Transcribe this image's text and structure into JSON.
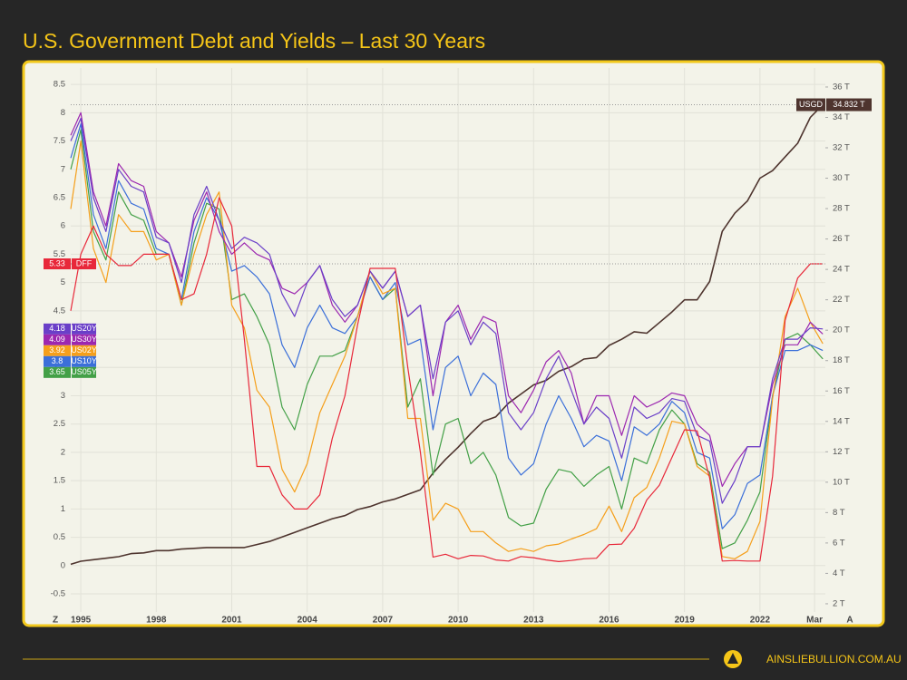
{
  "chart_data": {
    "type": "line",
    "title": "U.S. Government Debt and Yields – Last 30 Years",
    "x": [
      1994.6,
      1995,
      1995.5,
      1996,
      1996.5,
      1997,
      1997.5,
      1998,
      1998.5,
      1999,
      1999.5,
      2000,
      2000.5,
      2001,
      2001.5,
      2002,
      2002.5,
      2003,
      2003.5,
      2004,
      2004.5,
      2005,
      2005.5,
      2006,
      2006.5,
      2007,
      2007.5,
      2008,
      2008.5,
      2009,
      2009.5,
      2010,
      2010.5,
      2011,
      2011.5,
      2012,
      2012.5,
      2013,
      2013.5,
      2014,
      2014.5,
      2015,
      2015.5,
      2016,
      2016.5,
      2017,
      2017.5,
      2018,
      2018.5,
      2019,
      2019.5,
      2020,
      2020.5,
      2021,
      2021.5,
      2022,
      2022.5,
      2023,
      2023.5,
      2024,
      2024.5
    ],
    "series": [
      {
        "name": "DFF",
        "color": "#e8283a",
        "values": [
          4.5,
          5.5,
          6.0,
          5.5,
          5.3,
          5.3,
          5.5,
          5.5,
          5.5,
          4.7,
          4.8,
          5.5,
          6.5,
          6.0,
          4.0,
          1.75,
          1.75,
          1.25,
          1.0,
          1.0,
          1.25,
          2.25,
          3.0,
          4.25,
          5.25,
          5.25,
          5.25,
          3.5,
          2.0,
          0.15,
          0.2,
          0.12,
          0.18,
          0.17,
          0.1,
          0.08,
          0.16,
          0.14,
          0.1,
          0.07,
          0.09,
          0.12,
          0.13,
          0.37,
          0.38,
          0.66,
          1.16,
          1.42,
          1.91,
          2.4,
          2.38,
          1.55,
          0.08,
          0.09,
          0.08,
          0.08,
          1.58,
          4.33,
          5.08,
          5.33,
          5.33
        ]
      },
      {
        "name": "US20Y",
        "color": "#6a3fc8",
        "values": [
          7.5,
          7.9,
          6.5,
          5.9,
          7.0,
          6.7,
          6.6,
          5.8,
          5.7,
          5.0,
          6.2,
          6.7,
          6.1,
          5.6,
          5.8,
          5.7,
          5.5,
          4.8,
          4.4,
          5.0,
          5.3,
          4.7,
          4.4,
          4.6,
          5.2,
          4.9,
          5.2,
          4.4,
          4.6,
          3.3,
          4.3,
          4.5,
          3.9,
          4.3,
          4.1,
          2.7,
          2.4,
          2.7,
          3.3,
          3.7,
          3.1,
          2.5,
          2.8,
          2.6,
          1.9,
          2.8,
          2.6,
          2.7,
          2.95,
          2.9,
          2.3,
          2.2,
          1.1,
          1.5,
          2.1,
          2.1,
          3.3,
          4.0,
          4.0,
          4.2,
          4.18
        ]
      },
      {
        "name": "US30Y",
        "color": "#9c27b0",
        "values": [
          7.6,
          8.0,
          6.6,
          6.0,
          7.1,
          6.8,
          6.7,
          5.9,
          5.7,
          5.1,
          6.1,
          6.6,
          5.9,
          5.5,
          5.7,
          5.5,
          5.4,
          4.9,
          4.8,
          5.0,
          5.3,
          4.6,
          4.3,
          4.6,
          5.2,
          4.9,
          5.2,
          4.4,
          4.6,
          3.0,
          4.3,
          4.6,
          4.0,
          4.4,
          4.3,
          3.0,
          2.7,
          3.1,
          3.6,
          3.8,
          3.4,
          2.5,
          3.0,
          3.0,
          2.3,
          3.0,
          2.8,
          2.9,
          3.05,
          3.0,
          2.5,
          2.3,
          1.4,
          1.8,
          2.1,
          2.1,
          3.2,
          3.9,
          3.9,
          4.3,
          4.09
        ]
      },
      {
        "name": "US02Y",
        "color": "#f59f1b",
        "values": [
          6.3,
          7.5,
          5.6,
          5.0,
          6.2,
          5.9,
          5.9,
          5.4,
          5.5,
          4.6,
          5.5,
          6.2,
          6.6,
          4.6,
          4.2,
          3.1,
          2.8,
          1.7,
          1.3,
          1.8,
          2.7,
          3.2,
          3.7,
          4.4,
          5.2,
          4.8,
          4.9,
          2.6,
          2.6,
          0.8,
          1.1,
          1.0,
          0.6,
          0.6,
          0.4,
          0.25,
          0.3,
          0.25,
          0.35,
          0.38,
          0.47,
          0.55,
          0.65,
          1.05,
          0.6,
          1.2,
          1.38,
          1.9,
          2.55,
          2.5,
          1.75,
          1.58,
          0.16,
          0.12,
          0.25,
          0.78,
          2.95,
          4.4,
          4.9,
          4.3,
          3.92
        ]
      },
      {
        "name": "US10Y",
        "color": "#3b6fd9",
        "values": [
          7.2,
          7.8,
          6.2,
          5.6,
          6.8,
          6.4,
          6.3,
          5.6,
          5.5,
          4.7,
          5.9,
          6.5,
          6.1,
          5.2,
          5.3,
          5.1,
          4.8,
          3.9,
          3.5,
          4.2,
          4.6,
          4.2,
          4.1,
          4.4,
          5.1,
          4.7,
          5.0,
          3.9,
          4.0,
          2.4,
          3.5,
          3.7,
          3.0,
          3.4,
          3.2,
          1.9,
          1.6,
          1.8,
          2.5,
          3.0,
          2.6,
          2.1,
          2.3,
          2.2,
          1.5,
          2.45,
          2.3,
          2.5,
          2.9,
          2.7,
          2.0,
          1.9,
          0.65,
          0.9,
          1.45,
          1.6,
          3.0,
          3.8,
          3.8,
          3.9,
          3.8
        ]
      },
      {
        "name": "US05Y",
        "color": "#43a047",
        "values": [
          7.0,
          7.7,
          5.9,
          5.4,
          6.6,
          6.2,
          6.1,
          5.5,
          5.5,
          4.6,
          5.7,
          6.4,
          6.3,
          4.7,
          4.8,
          4.4,
          3.9,
          2.8,
          2.4,
          3.2,
          3.7,
          3.7,
          3.8,
          4.4,
          5.1,
          4.7,
          4.9,
          2.8,
          3.3,
          1.6,
          2.5,
          2.6,
          1.8,
          2.0,
          1.6,
          0.85,
          0.7,
          0.75,
          1.35,
          1.7,
          1.65,
          1.4,
          1.6,
          1.75,
          1.0,
          1.9,
          1.8,
          2.4,
          2.75,
          2.5,
          1.8,
          1.65,
          0.3,
          0.4,
          0.8,
          1.3,
          3.0,
          4.0,
          4.1,
          3.9,
          3.65
        ]
      },
      {
        "name": "USGD",
        "color": "#4e342e",
        "axis": "y2",
        "end_label": "34.832 T",
        "values": [
          4.6,
          4.8,
          4.9,
          5.0,
          5.1,
          5.3,
          5.35,
          5.5,
          5.5,
          5.6,
          5.65,
          5.7,
          5.7,
          5.7,
          5.7,
          5.9,
          6.1,
          6.4,
          6.7,
          7.0,
          7.3,
          7.6,
          7.8,
          8.2,
          8.4,
          8.7,
          8.9,
          9.2,
          9.5,
          10.6,
          11.5,
          12.3,
          13.2,
          14.0,
          14.3,
          15.2,
          15.8,
          16.4,
          16.7,
          17.3,
          17.6,
          18.1,
          18.2,
          19.0,
          19.4,
          19.9,
          19.8,
          20.5,
          21.2,
          22.0,
          22.0,
          23.2,
          26.5,
          27.7,
          28.5,
          30.0,
          30.5,
          31.4,
          32.3,
          34.0,
          34.832
        ]
      }
    ],
    "xlim": [
      1994.6,
      2024.6
    ],
    "xticks": [
      1995,
      1998,
      2001,
      2004,
      2007,
      2010,
      2013,
      2016,
      2019,
      2022,
      {
        "value": 2024.17,
        "label": "Mar"
      }
    ],
    "ylim": [
      -0.82,
      8.79
    ],
    "yticks": [
      -0.5,
      0,
      0.5,
      1,
      1.5,
      2,
      2.5,
      3,
      3.5,
      4,
      4.5,
      5,
      5.5,
      6,
      6.5,
      7,
      7.5,
      8,
      8.5
    ],
    "y2lim": [
      1.46,
      37.25
    ],
    "y2ticks": [
      {
        "value": 2,
        "label": "2 T"
      },
      {
        "value": 4,
        "label": "4 T"
      },
      {
        "value": 6,
        "label": "6 T"
      },
      {
        "value": 8,
        "label": "8 T"
      },
      {
        "value": 10,
        "label": "10 T"
      },
      {
        "value": 12,
        "label": "12 T"
      },
      {
        "value": 14,
        "label": "14 T"
      },
      {
        "value": 16,
        "label": "16 T"
      },
      {
        "value": 18,
        "label": "18 T"
      },
      {
        "value": 20,
        "label": "20 T"
      },
      {
        "value": 22,
        "label": "22 T"
      },
      {
        "value": 24,
        "label": "24 T"
      },
      {
        "value": 26,
        "label": "26 T"
      },
      {
        "value": 28,
        "label": "28 T"
      },
      {
        "value": 30,
        "label": "30 T"
      },
      {
        "value": 32,
        "label": "32 T"
      },
      {
        "value": 34,
        "label": "34 T"
      },
      {
        "value": 36,
        "label": "36 T"
      }
    ],
    "grid": true,
    "buttons": [
      "Z",
      "A"
    ]
  },
  "footer": "AINSLIEBULLION.COM.AU"
}
